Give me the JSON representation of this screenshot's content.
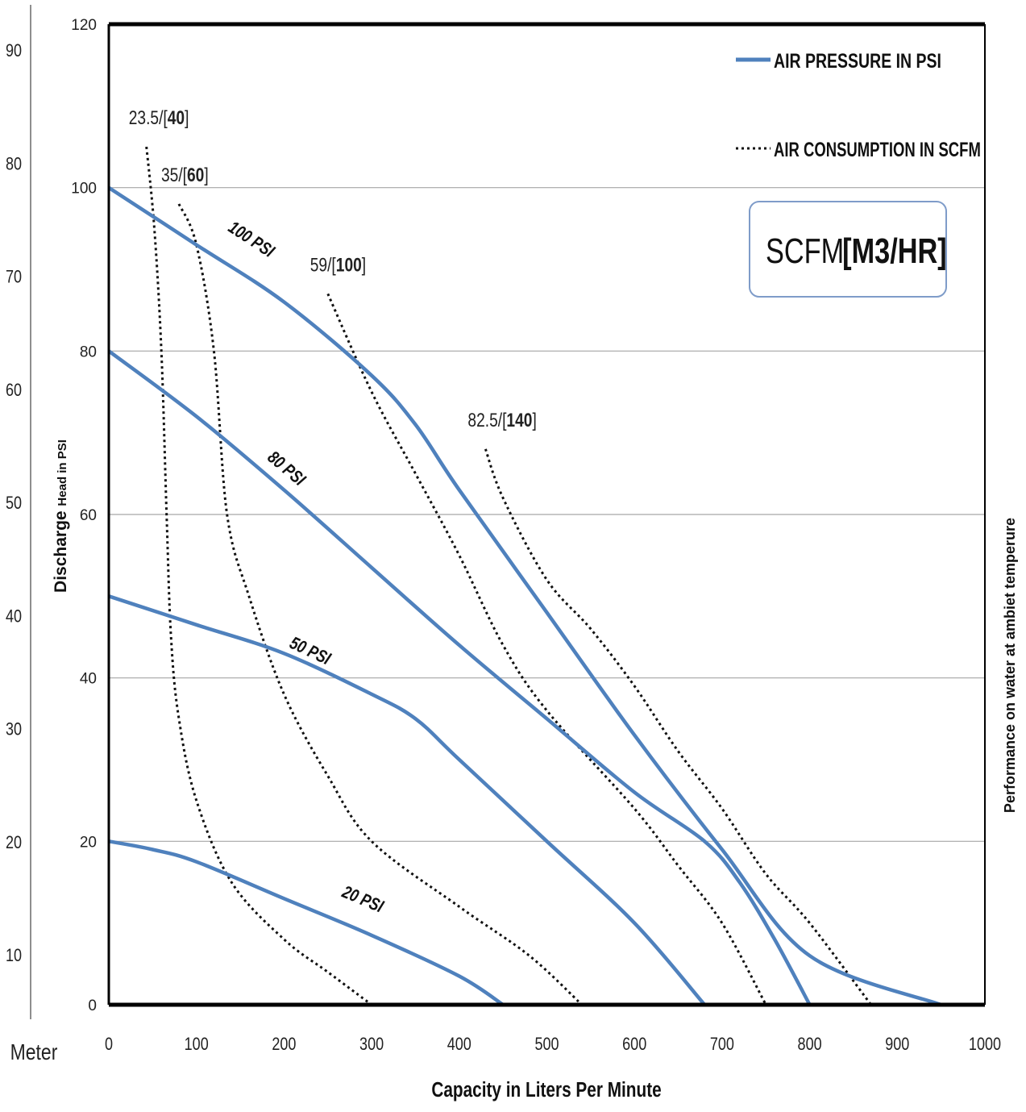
{
  "chart_data": {
    "type": "line",
    "xlabel": "Capacity in Liters Per Minute",
    "ylabel_prefix": "Discharge ",
    "ylabel_suffix": "Head in PSI",
    "right_label": "Performance on water at ambiet temperure",
    "meter_label": "Meter",
    "xlim": [
      0,
      1000
    ],
    "ylim": [
      0,
      120
    ],
    "x_ticks": [
      "0",
      "100",
      "200",
      "300",
      "400",
      "500",
      "600",
      "700",
      "800",
      "900",
      "1000"
    ],
    "y_ticks": [
      "0",
      "20",
      "40",
      "60",
      "80",
      "100",
      "120"
    ],
    "meter_ticks": [
      "10",
      "20",
      "30",
      "40",
      "50",
      "60",
      "70",
      "80",
      "90"
    ],
    "grid": "horizontal",
    "legend": {
      "placement": "top-right",
      "entries": [
        {
          "label": "AIR PRESSURE IN PSI",
          "style": "solid"
        },
        {
          "label": "AIR CONSUMPTION IN SCFM",
          "style": "dotted"
        }
      ]
    },
    "unit_box": {
      "scfm": "SCFM",
      "m3hr": "[M3/HR]"
    },
    "series_color": "#4f81bd",
    "pressure_series": [
      {
        "name": "100 PSI",
        "points": [
          [
            0,
            100
          ],
          [
            100,
            93
          ],
          [
            200,
            86
          ],
          [
            300,
            77
          ],
          [
            350,
            71
          ],
          [
            400,
            63
          ],
          [
            500,
            48
          ],
          [
            600,
            33
          ],
          [
            700,
            19
          ],
          [
            800,
            6
          ],
          [
            950,
            0
          ]
        ]
      },
      {
        "name": "80 PSI",
        "points": [
          [
            0,
            80
          ],
          [
            100,
            72
          ],
          [
            200,
            63
          ],
          [
            300,
            53.5
          ],
          [
            400,
            44
          ],
          [
            500,
            35
          ],
          [
            600,
            26
          ],
          [
            680,
            20
          ],
          [
            720,
            15
          ],
          [
            760,
            8
          ],
          [
            800,
            0
          ]
        ]
      },
      {
        "name": "50 PSI",
        "points": [
          [
            0,
            50
          ],
          [
            100,
            46.5
          ],
          [
            200,
            43
          ],
          [
            300,
            38
          ],
          [
            350,
            35
          ],
          [
            400,
            30
          ],
          [
            500,
            20
          ],
          [
            600,
            10
          ],
          [
            680,
            0
          ]
        ]
      },
      {
        "name": "20 PSI",
        "points": [
          [
            0,
            20
          ],
          [
            50,
            19
          ],
          [
            100,
            17.5
          ],
          [
            200,
            13
          ],
          [
            300,
            8.5
          ],
          [
            400,
            3.5
          ],
          [
            450,
            0
          ]
        ]
      }
    ],
    "consumption_series": [
      {
        "scfm": "23.5",
        "m3hr": "40",
        "points": [
          [
            43,
            105
          ],
          [
            52,
            95
          ],
          [
            60,
            80
          ],
          [
            66,
            60
          ],
          [
            71,
            45
          ],
          [
            80,
            35
          ],
          [
            100,
            25
          ],
          [
            140,
            15
          ],
          [
            200,
            8
          ],
          [
            250,
            4
          ],
          [
            300,
            0
          ]
        ]
      },
      {
        "scfm": "35",
        "m3hr": "60",
        "points": [
          [
            80,
            98
          ],
          [
            100,
            93
          ],
          [
            120,
            80
          ],
          [
            135,
            60
          ],
          [
            160,
            50
          ],
          [
            200,
            38
          ],
          [
            250,
            28
          ],
          [
            300,
            20
          ],
          [
            400,
            12
          ],
          [
            480,
            6
          ],
          [
            540,
            0
          ]
        ]
      },
      {
        "scfm": "59",
        "m3hr": "100",
        "points": [
          [
            250,
            87
          ],
          [
            300,
            75
          ],
          [
            350,
            65
          ],
          [
            400,
            55
          ],
          [
            450,
            44
          ],
          [
            500,
            36
          ],
          [
            600,
            24
          ],
          [
            650,
            17
          ],
          [
            700,
            10
          ],
          [
            750,
            0
          ]
        ]
      },
      {
        "scfm": "82.5",
        "m3hr": "140",
        "points": [
          [
            430,
            68
          ],
          [
            450,
            62
          ],
          [
            500,
            52
          ],
          [
            550,
            46
          ],
          [
            600,
            39
          ],
          [
            650,
            31
          ],
          [
            700,
            24
          ],
          [
            750,
            16
          ],
          [
            800,
            10
          ],
          [
            870,
            0
          ]
        ]
      }
    ]
  }
}
